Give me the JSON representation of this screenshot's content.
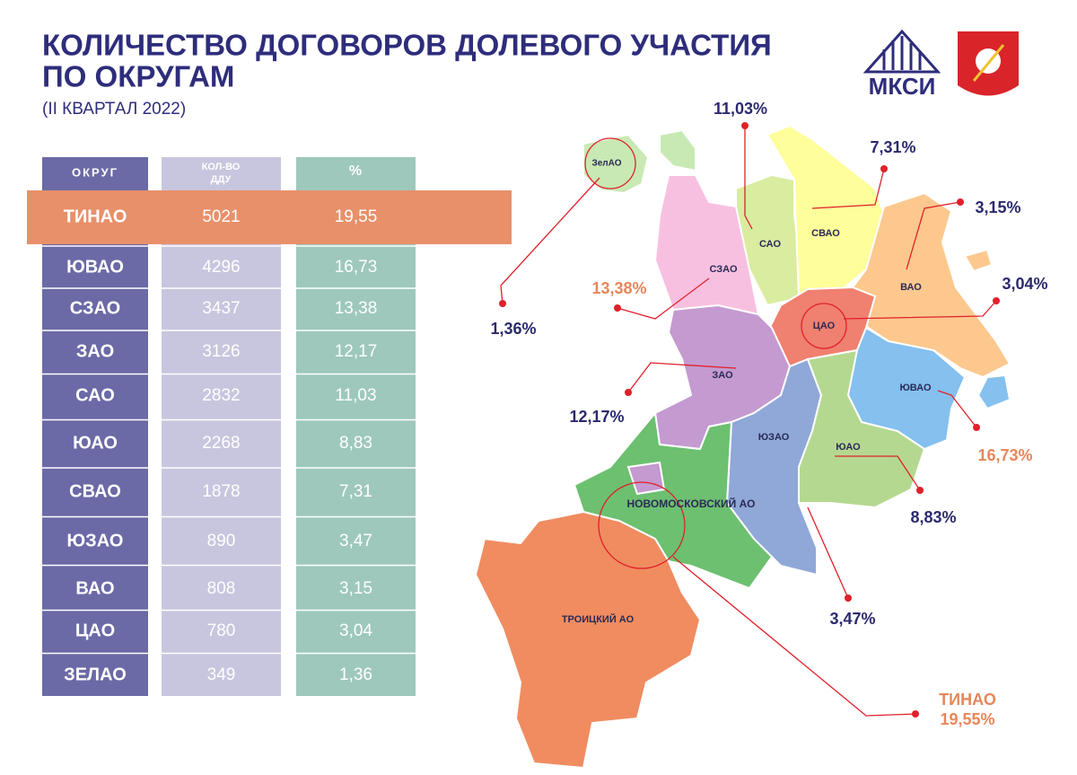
{
  "header": {
    "title_lines": [
      "КОЛИЧЕСТВО ДОГОВОРОВ ДОЛЕВОГО УЧАСТИЯ",
      "ПО ОКРУГАМ"
    ],
    "subtitle": "(II КВАРТАЛ 2022)",
    "logo": "МКСИ"
  },
  "table": {
    "columns": [
      "ОКРУГ",
      [
        "КОЛ-ВО",
        "ДДУ"
      ],
      "%"
    ],
    "rows": [
      [
        "ТИНАО",
        "5021",
        "19,55"
      ],
      [
        "ЮВАО",
        "4296",
        "16,73"
      ],
      [
        "СЗАО",
        "3437",
        "13,38"
      ],
      [
        "ЗАО",
        "3126",
        "12,17"
      ],
      [
        "САО",
        "2832",
        "11,03"
      ],
      [
        "ЮАО",
        "2268",
        "8,83"
      ],
      [
        "СВАО",
        "1878",
        "7,31"
      ],
      [
        "ЮЗАО",
        "890",
        "3,47"
      ],
      [
        "ВАО",
        "808",
        "3,15"
      ],
      [
        "ЦАО",
        "780",
        "3,04"
      ],
      [
        "ЗЕЛАО",
        "349",
        "1,36"
      ]
    ]
  },
  "map": {
    "districts": [
      "ЗелАО",
      "САО",
      "СВАО",
      "СЗАО",
      "ВАО",
      "ЦАО",
      "ЗАО",
      "ЮВАО",
      "ЮЗАО",
      "ЮАО",
      "НОВОМОСКОВСКИЙ АО",
      "ТРОИЦКИЙ АО"
    ],
    "callouts": [
      "11,03%",
      "7,31%",
      "3,15%",
      "3,04%",
      "13,38%",
      "1,36%",
      "12,17%",
      "16,73%",
      "8,83%",
      "3,47%"
    ],
    "tinao": {
      "label": "ТИНАО",
      "value": "19,55%"
    }
  }
}
